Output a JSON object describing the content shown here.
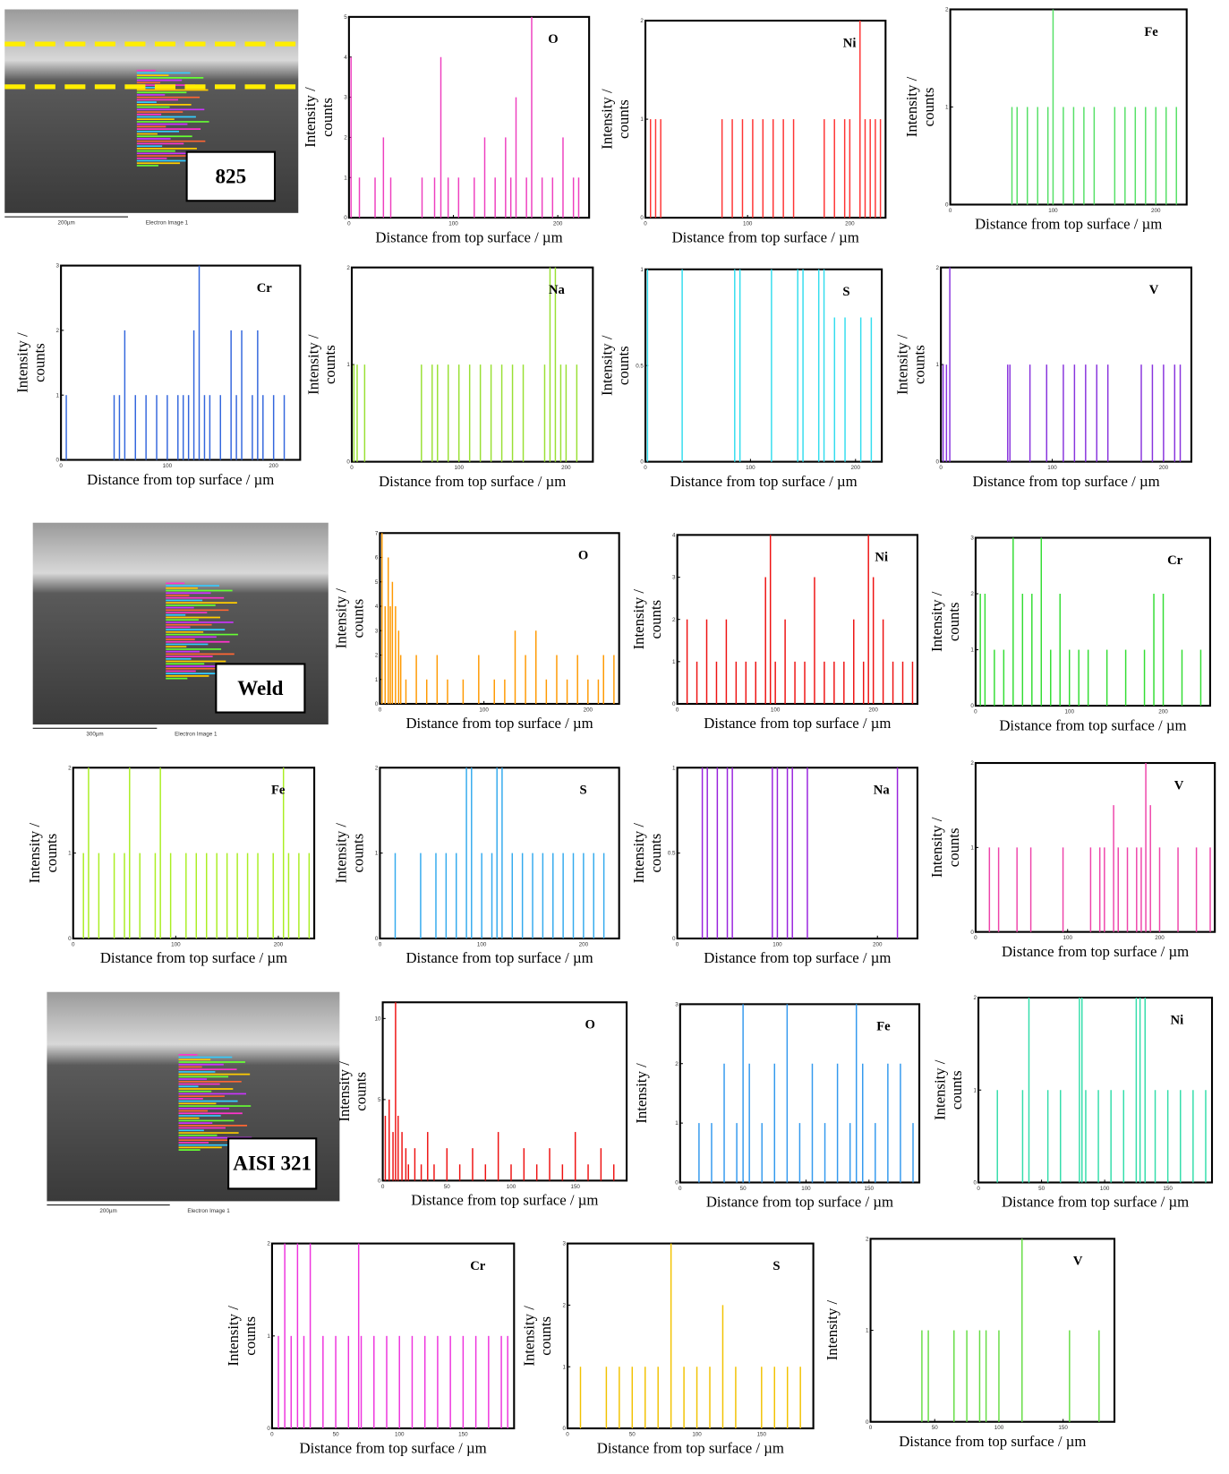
{
  "micrographs": [
    {
      "label": "825",
      "scale": "200µm",
      "caption": "Electron Image 1"
    },
    {
      "label": "Weld",
      "scale": "300µm",
      "caption": "Electron Image 1"
    },
    {
      "label": "AISI 321",
      "scale": "200µm",
      "caption": "Electron Image 1"
    }
  ],
  "chart_data": [
    {
      "type": "bar",
      "title": "O",
      "x_label": "Distance from top surface / µm",
      "y_label": [
        "Intensity /",
        "counts"
      ],
      "color": "#ee3fbf",
      "xlim": [
        0,
        230
      ],
      "ylim": [
        0,
        5
      ],
      "xticks": [
        0,
        100,
        200
      ],
      "yticks": [
        0,
        1,
        2,
        3,
        4,
        5
      ],
      "x": [
        2,
        10,
        25,
        33,
        40,
        70,
        82,
        88,
        95,
        105,
        120,
        130,
        140,
        150,
        155,
        160,
        170,
        175,
        185,
        195,
        205,
        215,
        220
      ],
      "values": [
        4,
        1,
        1,
        2,
        1,
        1,
        1,
        4,
        1,
        1,
        1,
        2,
        1,
        2,
        1,
        3,
        1,
        5,
        1,
        1,
        2,
        1,
        1
      ]
    },
    {
      "type": "bar",
      "title": "Ni",
      "x_label": "Distance from top surface / µm",
      "y_label": [
        "Intensity /",
        "counts"
      ],
      "color": "#ff3333",
      "xlim": [
        0,
        235
      ],
      "ylim": [
        0,
        2
      ],
      "xticks": [
        0,
        100,
        200
      ],
      "yticks": [
        0,
        1,
        2
      ],
      "x": [
        5,
        10,
        15,
        75,
        85,
        95,
        105,
        115,
        125,
        135,
        145,
        175,
        185,
        195,
        200,
        210,
        215,
        220,
        225,
        230
      ],
      "values": [
        1,
        1,
        1,
        1,
        1,
        1,
        1,
        1,
        1,
        1,
        1,
        1,
        1,
        1,
        1,
        2,
        1,
        1,
        1,
        1
      ]
    },
    {
      "type": "bar",
      "title": "Fe",
      "x_label": "Distance from top surface / µm",
      "y_label": [
        "Intensity /",
        "counts"
      ],
      "color": "#55e066",
      "xlim": [
        0,
        230
      ],
      "ylim": [
        0,
        2
      ],
      "xticks": [
        0,
        100,
        200
      ],
      "yticks": [
        0,
        1,
        2
      ],
      "x": [
        60,
        65,
        75,
        85,
        95,
        100,
        110,
        120,
        130,
        140,
        160,
        170,
        180,
        190,
        200,
        210,
        220
      ],
      "values": [
        1,
        1,
        1,
        1,
        1,
        2,
        1,
        1,
        1,
        1,
        1,
        1,
        1,
        1,
        1,
        1,
        1
      ]
    },
    {
      "type": "bar",
      "title": "Cr",
      "x_label": "Distance from top surface / µm",
      "y_label": [
        "Intensity /",
        "counts"
      ],
      "color": "#3366dd",
      "xlim": [
        0,
        225
      ],
      "ylim": [
        0,
        3
      ],
      "xticks": [
        0,
        100,
        200
      ],
      "yticks": [
        0,
        1,
        2,
        3
      ],
      "x": [
        5,
        50,
        55,
        60,
        70,
        80,
        90,
        100,
        110,
        115,
        120,
        125,
        130,
        135,
        140,
        150,
        160,
        165,
        170,
        180,
        185,
        190,
        200,
        210
      ],
      "values": [
        1,
        1,
        1,
        2,
        1,
        1,
        1,
        1,
        1,
        1,
        1,
        2,
        3,
        1,
        1,
        1,
        2,
        1,
        2,
        1,
        2,
        1,
        1,
        1
      ]
    },
    {
      "type": "bar",
      "title": "Na",
      "x_label": "Distance from top surface / µm",
      "y_label": [
        "Intensity /",
        "counts"
      ],
      "color": "#99e033",
      "xlim": [
        0,
        225
      ],
      "ylim": [
        0,
        2
      ],
      "xticks": [
        0,
        100,
        200
      ],
      "yticks": [
        0,
        1,
        2
      ],
      "x": [
        2,
        5,
        12,
        65,
        75,
        80,
        90,
        100,
        110,
        120,
        130,
        140,
        150,
        160,
        180,
        185,
        190,
        195,
        200,
        210
      ],
      "values": [
        1,
        1,
        1,
        1,
        1,
        1,
        1,
        1,
        1,
        1,
        1,
        1,
        1,
        1,
        1,
        2,
        2,
        1,
        1,
        1
      ]
    },
    {
      "type": "bar",
      "title": "S",
      "x_label": "Distance from top surface / µm",
      "y_label": [
        "Intensity /",
        "counts"
      ],
      "color": "#33ddee",
      "xlim": [
        0,
        225
      ],
      "ylim": [
        0,
        1
      ],
      "xticks": [
        0,
        100,
        200
      ],
      "yticks": [
        0,
        0.5,
        1
      ],
      "x": [
        2,
        35,
        85,
        90,
        120,
        145,
        150,
        165,
        170,
        180,
        190,
        205,
        215
      ],
      "values": [
        1,
        1,
        1,
        1,
        1,
        1,
        1,
        1,
        1,
        0.75,
        0.75,
        0.75,
        0.75
      ]
    },
    {
      "type": "bar",
      "title": "V",
      "x_label": "Distance from top surface / µm",
      "y_label": [
        "Intensity /",
        "counts"
      ],
      "color": "#8833dd",
      "xlim": [
        0,
        225
      ],
      "ylim": [
        0,
        2
      ],
      "xticks": [
        0,
        100,
        200
      ],
      "yticks": [
        0,
        1,
        2
      ],
      "x": [
        2,
        5,
        8,
        60,
        62,
        80,
        95,
        110,
        120,
        130,
        140,
        150,
        180,
        190,
        200,
        210,
        215
      ],
      "values": [
        1,
        1,
        2,
        1,
        1,
        1,
        1,
        1,
        1,
        1,
        1,
        1,
        1,
        1,
        1,
        1,
        1
      ]
    },
    {
      "type": "bar",
      "title": "O",
      "x_label": "Distance from top surface / µm",
      "y_label": [
        "Intensity /",
        "counts"
      ],
      "color": "#ff9900",
      "xlim": [
        0,
        230
      ],
      "ylim": [
        0,
        7
      ],
      "xticks": [
        0,
        100,
        200
      ],
      "yticks": [
        0,
        1,
        2,
        3,
        4,
        5,
        6,
        7
      ],
      "x": [
        2,
        5,
        8,
        10,
        12,
        15,
        18,
        20,
        25,
        35,
        45,
        55,
        65,
        80,
        95,
        110,
        120,
        130,
        140,
        150,
        160,
        170,
        180,
        190,
        200,
        210,
        215,
        225
      ],
      "values": [
        7,
        4,
        6,
        4,
        5,
        4,
        3,
        2,
        1,
        2,
        1,
        2,
        1,
        1,
        2,
        1,
        1,
        3,
        2,
        3,
        1,
        2,
        1,
        2,
        1,
        1,
        2,
        2
      ]
    },
    {
      "type": "bar",
      "title": "Ni",
      "x_label": "Distance from top surface / µm",
      "y_label": [
        "Intensity /",
        "counts"
      ],
      "color": "#ee1111",
      "xlim": [
        0,
        245
      ],
      "ylim": [
        0,
        4
      ],
      "xticks": [
        0,
        100,
        200
      ],
      "yticks": [
        0,
        1,
        2,
        3,
        4
      ],
      "x": [
        10,
        20,
        30,
        40,
        50,
        60,
        70,
        80,
        90,
        95,
        100,
        110,
        120,
        130,
        140,
        150,
        160,
        170,
        180,
        190,
        195,
        200,
        210,
        220,
        230,
        240
      ],
      "values": [
        2,
        1,
        2,
        1,
        2,
        1,
        1,
        1,
        3,
        4,
        1,
        2,
        1,
        1,
        3,
        1,
        1,
        1,
        2,
        1,
        4,
        3,
        2,
        1,
        1,
        1
      ]
    },
    {
      "type": "bar",
      "title": "Cr",
      "x_label": "Distance from top surface / µm",
      "y_label": [
        "Intensity /",
        "counts"
      ],
      "color": "#33dd33",
      "xlim": [
        0,
        250
      ],
      "ylim": [
        0,
        3
      ],
      "xticks": [
        0,
        100,
        200
      ],
      "yticks": [
        0,
        1,
        2,
        3
      ],
      "x": [
        5,
        10,
        20,
        30,
        40,
        50,
        60,
        70,
        80,
        90,
        100,
        110,
        120,
        140,
        160,
        180,
        190,
        200,
        220,
        240
      ],
      "values": [
        2,
        2,
        1,
        1,
        3,
        2,
        2,
        3,
        1,
        2,
        1,
        1,
        1,
        1,
        1,
        1,
        2,
        2,
        1,
        1
      ]
    },
    {
      "type": "bar",
      "title": "Fe",
      "x_label": "Distance from top surface / µm",
      "y_label": [
        "Intensity /",
        "counts"
      ],
      "color": "#aaee22",
      "xlim": [
        0,
        235
      ],
      "ylim": [
        0,
        2
      ],
      "xticks": [
        0,
        100,
        200
      ],
      "yticks": [
        0,
        1,
        2
      ],
      "x": [
        10,
        15,
        25,
        40,
        50,
        55,
        65,
        80,
        85,
        95,
        110,
        120,
        130,
        140,
        150,
        160,
        170,
        180,
        195,
        205,
        210,
        220,
        230
      ],
      "values": [
        1,
        2,
        1,
        1,
        1,
        2,
        1,
        1,
        2,
        1,
        1,
        1,
        1,
        1,
        1,
        1,
        1,
        1,
        1,
        2,
        1,
        1,
        1
      ]
    },
    {
      "type": "bar",
      "title": "S",
      "x_label": "Distance from top surface / µm",
      "y_label": [
        "Intensity /",
        "counts"
      ],
      "color": "#33aaee",
      "xlim": [
        0,
        235
      ],
      "ylim": [
        0,
        2
      ],
      "xticks": [
        0,
        100,
        200
      ],
      "yticks": [
        0,
        1,
        2
      ],
      "x": [
        15,
        40,
        55,
        65,
        75,
        85,
        90,
        100,
        110,
        115,
        120,
        130,
        140,
        150,
        160,
        170,
        180,
        190,
        200,
        210,
        220
      ],
      "values": [
        1,
        1,
        1,
        1,
        1,
        2,
        2,
        1,
        1,
        2,
        2,
        1,
        1,
        1,
        1,
        1,
        1,
        1,
        1,
        1,
        1
      ]
    },
    {
      "type": "bar",
      "title": "Na",
      "x_label": "Distance from top surface / µm",
      "y_label": [
        "Intensity /",
        "counts"
      ],
      "color": "#9922dd",
      "xlim": [
        0,
        240
      ],
      "ylim": [
        0,
        1
      ],
      "xticks": [
        0,
        100,
        200
      ],
      "yticks": [
        0,
        0.5,
        1
      ],
      "x": [
        25,
        30,
        40,
        50,
        55,
        95,
        100,
        110,
        115,
        130,
        220
      ],
      "values": [
        1,
        1,
        1,
        1,
        1,
        1,
        1,
        1,
        1,
        1,
        1
      ]
    },
    {
      "type": "bar",
      "title": "V",
      "x_label": "Distance from top surface / µm",
      "y_label": [
        "Intensity /",
        "counts"
      ],
      "color": "#ee44aa",
      "xlim": [
        0,
        260
      ],
      "ylim": [
        0,
        2
      ],
      "xticks": [
        0,
        100,
        200
      ],
      "yticks": [
        0,
        1,
        2
      ],
      "x": [
        15,
        25,
        45,
        60,
        95,
        125,
        135,
        140,
        150,
        155,
        165,
        175,
        180,
        185,
        190,
        200,
        220,
        240,
        255
      ],
      "values": [
        1,
        1,
        1,
        1,
        1,
        1,
        1,
        1,
        1.5,
        1,
        1,
        1,
        1,
        2,
        1.5,
        1,
        1,
        1,
        1
      ]
    },
    {
      "type": "bar",
      "title": "O",
      "x_label": "Distance from top surface / µm",
      "y_label": [
        "Intensity /",
        "counts"
      ],
      "color": "#ee1111",
      "xlim": [
        0,
        190
      ],
      "ylim": [
        0,
        11
      ],
      "xticks": [
        0,
        50,
        100,
        150
      ],
      "yticks": [
        0,
        5,
        10
      ],
      "x": [
        2,
        5,
        8,
        10,
        12,
        15,
        18,
        20,
        25,
        30,
        35,
        40,
        50,
        60,
        70,
        80,
        90,
        100,
        110,
        120,
        130,
        140,
        150,
        160,
        170,
        180
      ],
      "values": [
        4,
        5,
        3,
        11,
        4,
        3,
        2,
        1,
        2,
        1,
        3,
        1,
        2,
        1,
        2,
        1,
        3,
        1,
        2,
        1,
        2,
        1,
        3,
        1,
        2,
        1
      ]
    },
    {
      "type": "bar",
      "title": "Fe",
      "x_label": "Distance from top surface / µm",
      "y_label": [
        "Intensity /"
      ],
      "color": "#3399ee",
      "xlim": [
        0,
        190
      ],
      "ylim": [
        0,
        3
      ],
      "xticks": [
        0,
        50,
        100,
        150
      ],
      "yticks": [
        0,
        1,
        2,
        3
      ],
      "x": [
        15,
        25,
        35,
        45,
        50,
        55,
        65,
        75,
        85,
        95,
        105,
        115,
        125,
        135,
        140,
        145,
        155,
        165,
        175,
        185
      ],
      "values": [
        1,
        1,
        2,
        1,
        3,
        2,
        1,
        2,
        3,
        1,
        2,
        1,
        2,
        1,
        3,
        2,
        1,
        2,
        2,
        1
      ]
    },
    {
      "type": "bar",
      "title": "Ni",
      "x_label": "Distance from top surface / µm",
      "y_label": [
        "Intensity /",
        "counts"
      ],
      "color": "#33ddaa",
      "xlim": [
        0,
        185
      ],
      "ylim": [
        0,
        2
      ],
      "xticks": [
        0,
        50,
        100,
        150
      ],
      "yticks": [
        0,
        1,
        2
      ],
      "x": [
        15,
        35,
        40,
        55,
        65,
        80,
        82,
        85,
        95,
        105,
        115,
        125,
        128,
        132,
        140,
        150,
        160,
        170,
        180
      ],
      "values": [
        1,
        1,
        2,
        1,
        1,
        2,
        2,
        1,
        1,
        1,
        1,
        2,
        2,
        2,
        1,
        1,
        1,
        1,
        1
      ]
    },
    {
      "type": "bar",
      "title": "Cr",
      "x_label": "Distance from top surface / µm",
      "y_label": [
        "Intensity /",
        "counts"
      ],
      "color": "#ee33dd",
      "xlim": [
        0,
        190
      ],
      "ylim": [
        0,
        2
      ],
      "xticks": [
        0,
        50,
        100,
        150
      ],
      "yticks": [
        0,
        1,
        2
      ],
      "x": [
        5,
        10,
        15,
        20,
        25,
        30,
        40,
        50,
        60,
        68,
        70,
        80,
        90,
        100,
        110,
        120,
        130,
        140,
        150,
        160,
        170,
        180,
        185
      ],
      "values": [
        1,
        2,
        1,
        2,
        1,
        2,
        1,
        1,
        1,
        2,
        1,
        1,
        1,
        1,
        1,
        1,
        1,
        1,
        1,
        1,
        1,
        1,
        1
      ]
    },
    {
      "type": "bar",
      "title": "S",
      "x_label": "Distance from top surface / µm",
      "y_label": [
        "Intensity /",
        "counts"
      ],
      "color": "#f2c200",
      "xlim": [
        0,
        190
      ],
      "ylim": [
        0,
        3
      ],
      "xticks": [
        0,
        50,
        100,
        150
      ],
      "yticks": [
        0,
        1,
        2,
        3
      ],
      "x": [
        10,
        30,
        40,
        50,
        60,
        70,
        80,
        90,
        100,
        110,
        120,
        130,
        150,
        160,
        170,
        180
      ],
      "values": [
        1,
        1,
        1,
        1,
        1,
        1,
        3,
        1,
        1,
        1,
        2,
        1,
        1,
        1,
        1,
        1
      ]
    },
    {
      "type": "bar",
      "title": "V",
      "x_label": "Distance from top surface / µm",
      "y_label": [
        "Intensity /"
      ],
      "color": "#66dd44",
      "xlim": [
        0,
        190
      ],
      "ylim": [
        0,
        2
      ],
      "xticks": [
        0,
        50,
        100,
        150
      ],
      "yticks": [
        0,
        1,
        2
      ],
      "x": [
        40,
        45,
        65,
        75,
        85,
        90,
        100,
        118,
        155,
        178
      ],
      "values": [
        1,
        1,
        1,
        1,
        1,
        1,
        1,
        2,
        1,
        1
      ]
    }
  ]
}
